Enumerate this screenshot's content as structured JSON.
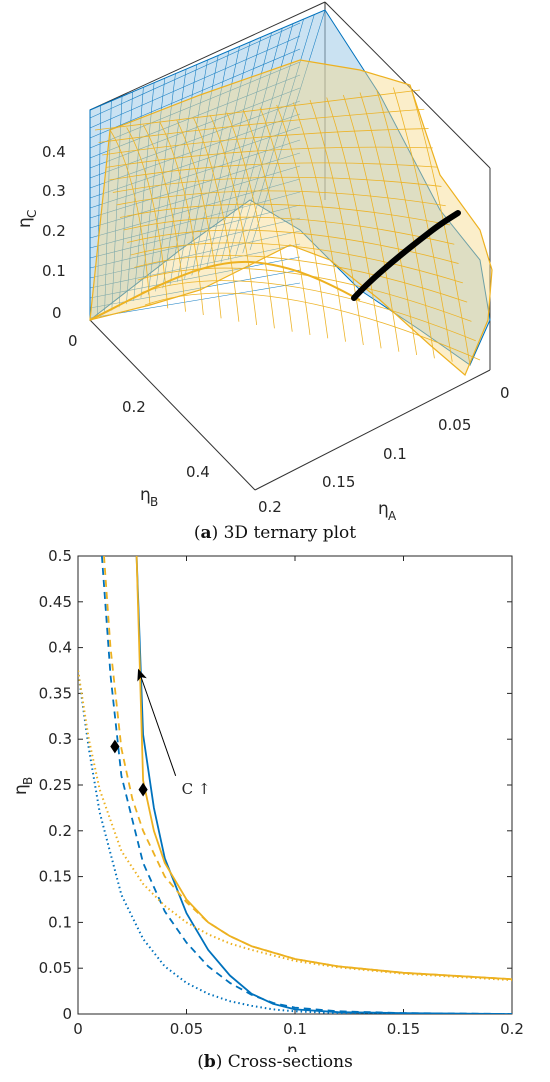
{
  "figure_a": {
    "caption_letter": "a",
    "caption_text": "3D ternary plot",
    "axes": {
      "eta_A_label": "η",
      "eta_A_sub": "A",
      "eta_B_label": "η",
      "eta_B_sub": "B",
      "eta_C_label": "η",
      "eta_C_sub": "C"
    },
    "z_ticks": [
      "0",
      "0.1",
      "0.2",
      "0.3",
      "0.4"
    ],
    "eta_B_ticks": [
      "0",
      "0.2",
      "0.4"
    ],
    "eta_A_ticks": [
      "0",
      "0.05",
      "0.1",
      "0.15",
      "0.2"
    ]
  },
  "figure_b": {
    "caption_letter": "b",
    "caption_text": "Cross-sections",
    "annotation": "C ↑",
    "x_label": "η",
    "x_sub": "A",
    "y_label": "η",
    "y_sub": "B"
  },
  "colors": {
    "blue": "#0072BD",
    "orange": "#EDB120",
    "marker": "#000000"
  },
  "chart_data": [
    {
      "type": "surface",
      "description_axes": [
        "η_A",
        "η_B",
        "η_C"
      ],
      "xlim": [
        0,
        0.2
      ],
      "ylim": [
        0,
        0.5
      ],
      "zlim": [
        0,
        0.45
      ],
      "surfaces": [
        {
          "color": "blue",
          "style": "mesh"
        },
        {
          "color": "orange",
          "style": "mesh"
        }
      ]
    },
    {
      "type": "line",
      "xlabel": "η_A",
      "ylabel": "η_B",
      "xlim": [
        0,
        0.2
      ],
      "ylim": [
        0,
        0.5
      ],
      "xticks": [
        0,
        0.05,
        0.1,
        0.15,
        0.2
      ],
      "xtick_labels": [
        "0",
        "0.05",
        "0.1",
        "0.15",
        "0.2"
      ],
      "yticks": [
        0,
        0.05,
        0.1,
        0.15,
        0.2,
        0.25,
        0.3,
        0.35,
        0.4,
        0.45,
        0.5
      ],
      "ytick_labels": [
        "0",
        "0.05",
        "0.1",
        "0.15",
        "0.2",
        "0.25",
        "0.3",
        "0.35",
        "0.4",
        "0.45",
        "0.5"
      ],
      "series": [
        {
          "color": "blue",
          "style": "solid",
          "x": [
            0.027,
            0.03,
            0.035,
            0.04,
            0.05,
            0.06,
            0.07,
            0.08,
            0.09,
            0.1,
            0.12,
            0.15,
            0.2
          ],
          "y": [
            0.5,
            0.305,
            0.225,
            0.17,
            0.11,
            0.07,
            0.042,
            0.022,
            0.011,
            0.005,
            0.002,
            0.001,
            0.0
          ]
        },
        {
          "color": "blue",
          "style": "dashed",
          "x": [
            0.011,
            0.015,
            0.02,
            0.03,
            0.04,
            0.05,
            0.06,
            0.07,
            0.08,
            0.09,
            0.1,
            0.12,
            0.15,
            0.2
          ],
          "y": [
            0.5,
            0.37,
            0.26,
            0.165,
            0.112,
            0.078,
            0.052,
            0.034,
            0.021,
            0.012,
            0.007,
            0.003,
            0.001,
            0.0
          ]
        },
        {
          "color": "blue",
          "style": "dotted",
          "x": [
            0.0,
            0.005,
            0.01,
            0.02,
            0.03,
            0.04,
            0.05,
            0.06,
            0.07,
            0.08,
            0.09,
            0.1,
            0.12,
            0.15,
            0.2
          ],
          "y": [
            0.375,
            0.29,
            0.22,
            0.13,
            0.082,
            0.052,
            0.034,
            0.022,
            0.014,
            0.009,
            0.005,
            0.003,
            0.001,
            0.0,
            0.0
          ]
        },
        {
          "color": "orange",
          "style": "solid",
          "x": [
            0.027,
            0.03,
            0.035,
            0.04,
            0.05,
            0.06,
            0.07,
            0.08,
            0.1,
            0.12,
            0.15,
            0.2
          ],
          "y": [
            0.5,
            0.255,
            0.2,
            0.165,
            0.125,
            0.1,
            0.085,
            0.074,
            0.06,
            0.052,
            0.045,
            0.038
          ]
        },
        {
          "color": "orange",
          "style": "dashed",
          "x": [
            0.012,
            0.015,
            0.02,
            0.025,
            0.03,
            0.04,
            0.05,
            0.06,
            0.07,
            0.08,
            0.1,
            0.12,
            0.15,
            0.2
          ],
          "y": [
            0.5,
            0.4,
            0.29,
            0.235,
            0.2,
            0.15,
            0.122,
            0.1,
            0.085,
            0.074,
            0.06,
            0.052,
            0.045,
            0.038
          ]
        },
        {
          "color": "orange",
          "style": "dotted",
          "x": [
            0.0,
            0.005,
            0.01,
            0.02,
            0.03,
            0.04,
            0.05,
            0.06,
            0.07,
            0.08,
            0.1,
            0.12,
            0.15,
            0.2
          ],
          "y": [
            0.375,
            0.3,
            0.245,
            0.178,
            0.142,
            0.118,
            0.1,
            0.087,
            0.077,
            0.07,
            0.058,
            0.051,
            0.044,
            0.037
          ]
        }
      ],
      "markers": [
        {
          "x": 0.017,
          "y": 0.292
        },
        {
          "x": 0.03,
          "y": 0.245
        }
      ],
      "annotation": {
        "text": "C ↑",
        "arrow_from": [
          0.045,
          0.26
        ],
        "arrow_to": [
          0.028,
          0.375
        ]
      }
    }
  ]
}
